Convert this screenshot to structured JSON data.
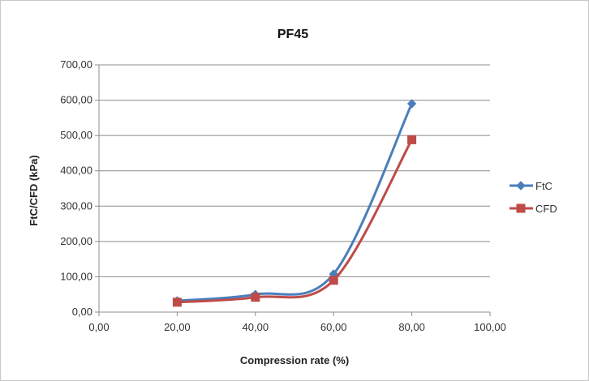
{
  "chart_data": {
    "type": "line",
    "title": "PF45",
    "xlabel": "Compression rate (%)",
    "ylabel": "FtC/CFD (kPa)",
    "xlim": [
      0,
      100
    ],
    "ylim": [
      0,
      700
    ],
    "xticks": [
      0,
      20,
      40,
      60,
      80,
      100
    ],
    "yticks": [
      0,
      100,
      200,
      300,
      400,
      500,
      600,
      700
    ],
    "xtick_labels": [
      "0,00",
      "20,00",
      "40,00",
      "60,00",
      "80,00",
      "100,00"
    ],
    "ytick_labels": [
      "0,00",
      "100,00",
      "200,00",
      "300,00",
      "400,00",
      "500,00",
      "600,00",
      "700,00"
    ],
    "grid": "horizontal",
    "legend_position": "right",
    "smooth": true,
    "series": [
      {
        "name": "FtC",
        "color": "#4a7ebb",
        "marker": "diamond",
        "x": [
          20,
          40,
          60,
          80
        ],
        "y": [
          32,
          50,
          108,
          590
        ]
      },
      {
        "name": "CFD",
        "color": "#be4b48",
        "marker": "square",
        "x": [
          20,
          40,
          60,
          80
        ],
        "y": [
          28,
          42,
          90,
          488
        ]
      }
    ]
  }
}
